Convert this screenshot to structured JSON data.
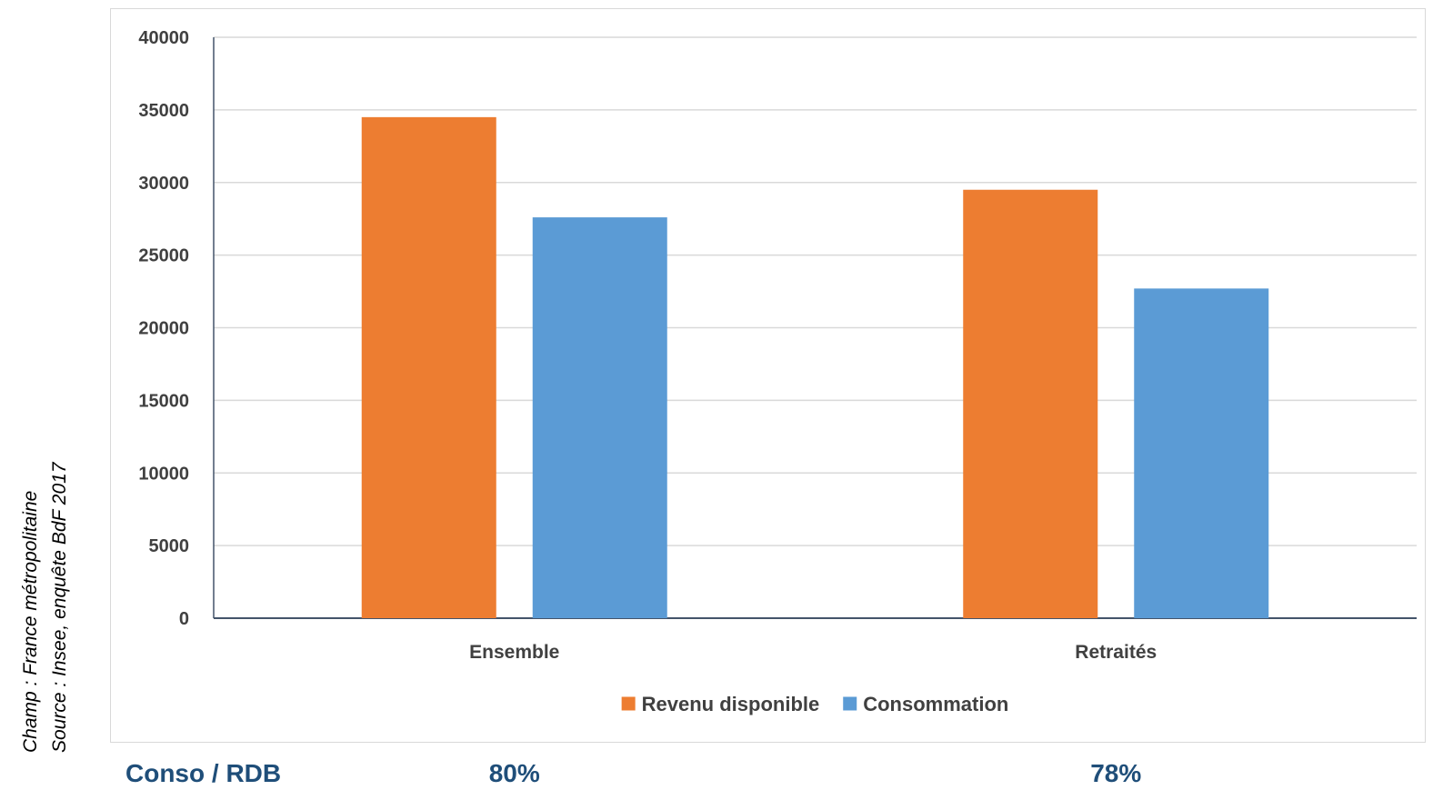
{
  "notes": {
    "line1": "Champ : France métropolitaine",
    "line2": "Source : Insee, enquête BdF 2017"
  },
  "chart_data": {
    "type": "bar",
    "categories": [
      "Ensemble",
      "Retraités"
    ],
    "series": [
      {
        "name": "Revenu disponible",
        "values": [
          34500,
          29500
        ],
        "color": "#ed7d31"
      },
      {
        "name": "Consommation",
        "values": [
          27600,
          22700
        ],
        "color": "#5b9bd5"
      }
    ],
    "ylim": [
      0,
      40000
    ],
    "yticks": [
      0,
      5000,
      10000,
      15000,
      20000,
      25000,
      30000,
      35000,
      40000
    ],
    "grid": true,
    "legend_position": "bottom"
  },
  "ratio_row": {
    "label": "Conso / RDB",
    "values": [
      "80%",
      "78%"
    ]
  }
}
